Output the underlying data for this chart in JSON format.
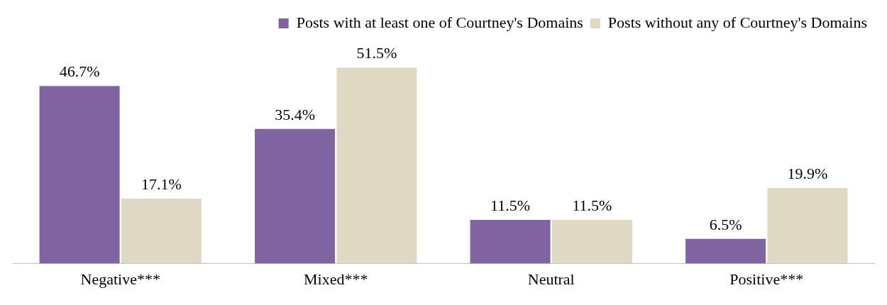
{
  "chart_data": {
    "type": "bar",
    "categories": [
      "Negative***",
      "Mixed***",
      "Neutral",
      "Positive***"
    ],
    "series": [
      {
        "name": "Posts with at least one of Courtney's Domains",
        "color": "#8064a2",
        "values": [
          46.7,
          35.4,
          11.5,
          6.5
        ],
        "value_labels": [
          "46.7%",
          "35.4%",
          "11.5%",
          "6.5%"
        ]
      },
      {
        "name": "Posts without any of Courtney's Domains",
        "color": "#ddd9c3",
        "values": [
          17.1,
          51.5,
          11.5,
          19.9
        ],
        "value_labels": [
          "17.1%",
          "51.5%",
          "11.5%",
          "19.9%"
        ]
      }
    ],
    "legend": "top right",
    "grid": false
  }
}
